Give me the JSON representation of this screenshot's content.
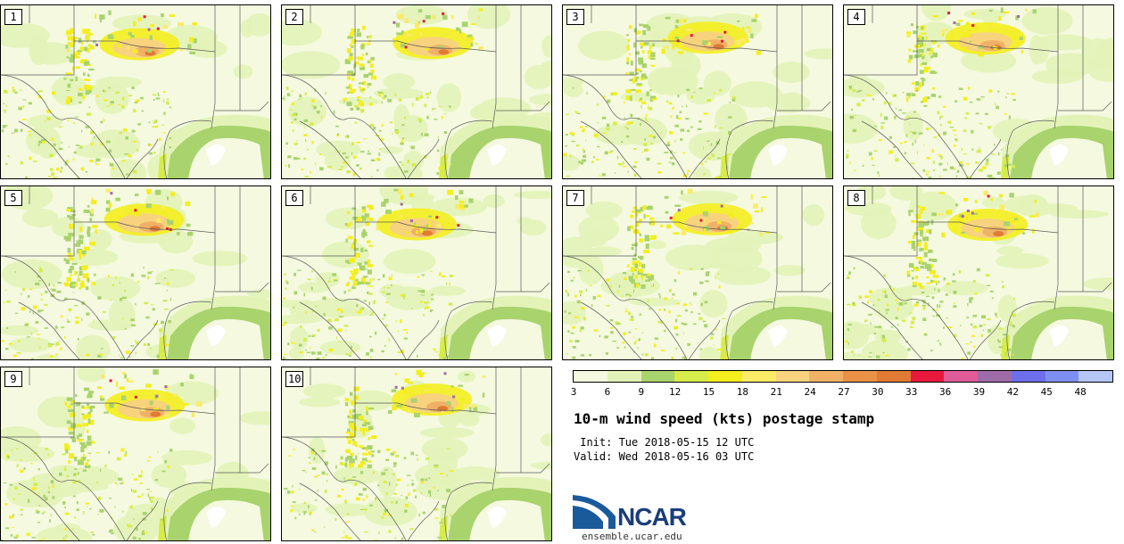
{
  "panels": [
    {
      "label": "1"
    },
    {
      "label": "2"
    },
    {
      "label": "3"
    },
    {
      "label": "4"
    },
    {
      "label": "5"
    },
    {
      "label": "6"
    },
    {
      "label": "7"
    },
    {
      "label": "8"
    },
    {
      "label": "9"
    },
    {
      "label": "10"
    }
  ],
  "colorbar": {
    "colors": [
      "#f4f9df",
      "#e3f3b8",
      "#a9d36d",
      "#d6ec4a",
      "#f4ee1e",
      "#fbeb66",
      "#f7d37d",
      "#f0b167",
      "#e89147",
      "#e07a34",
      "#e8193c",
      "#e05b97",
      "#9f6aa8",
      "#6d6fea",
      "#7e8ff2",
      "#b4c6f3"
    ],
    "tick_labels": [
      "3",
      "6",
      "9",
      "12",
      "15",
      "18",
      "21",
      "24",
      "27",
      "30",
      "33",
      "36",
      "39",
      "42",
      "45",
      "48"
    ]
  },
  "title": "10-m wind speed (kts) postage stamp",
  "init": " Init: Tue 2018-05-15 12 UTC",
  "valid": "Valid: Wed 2018-05-16 03 UTC",
  "logo": {
    "name": "NCAR",
    "url": "ensemble.ucar.edu",
    "colors": {
      "blue": "#1a5a9a",
      "dark": "#1a3d7a"
    }
  }
}
